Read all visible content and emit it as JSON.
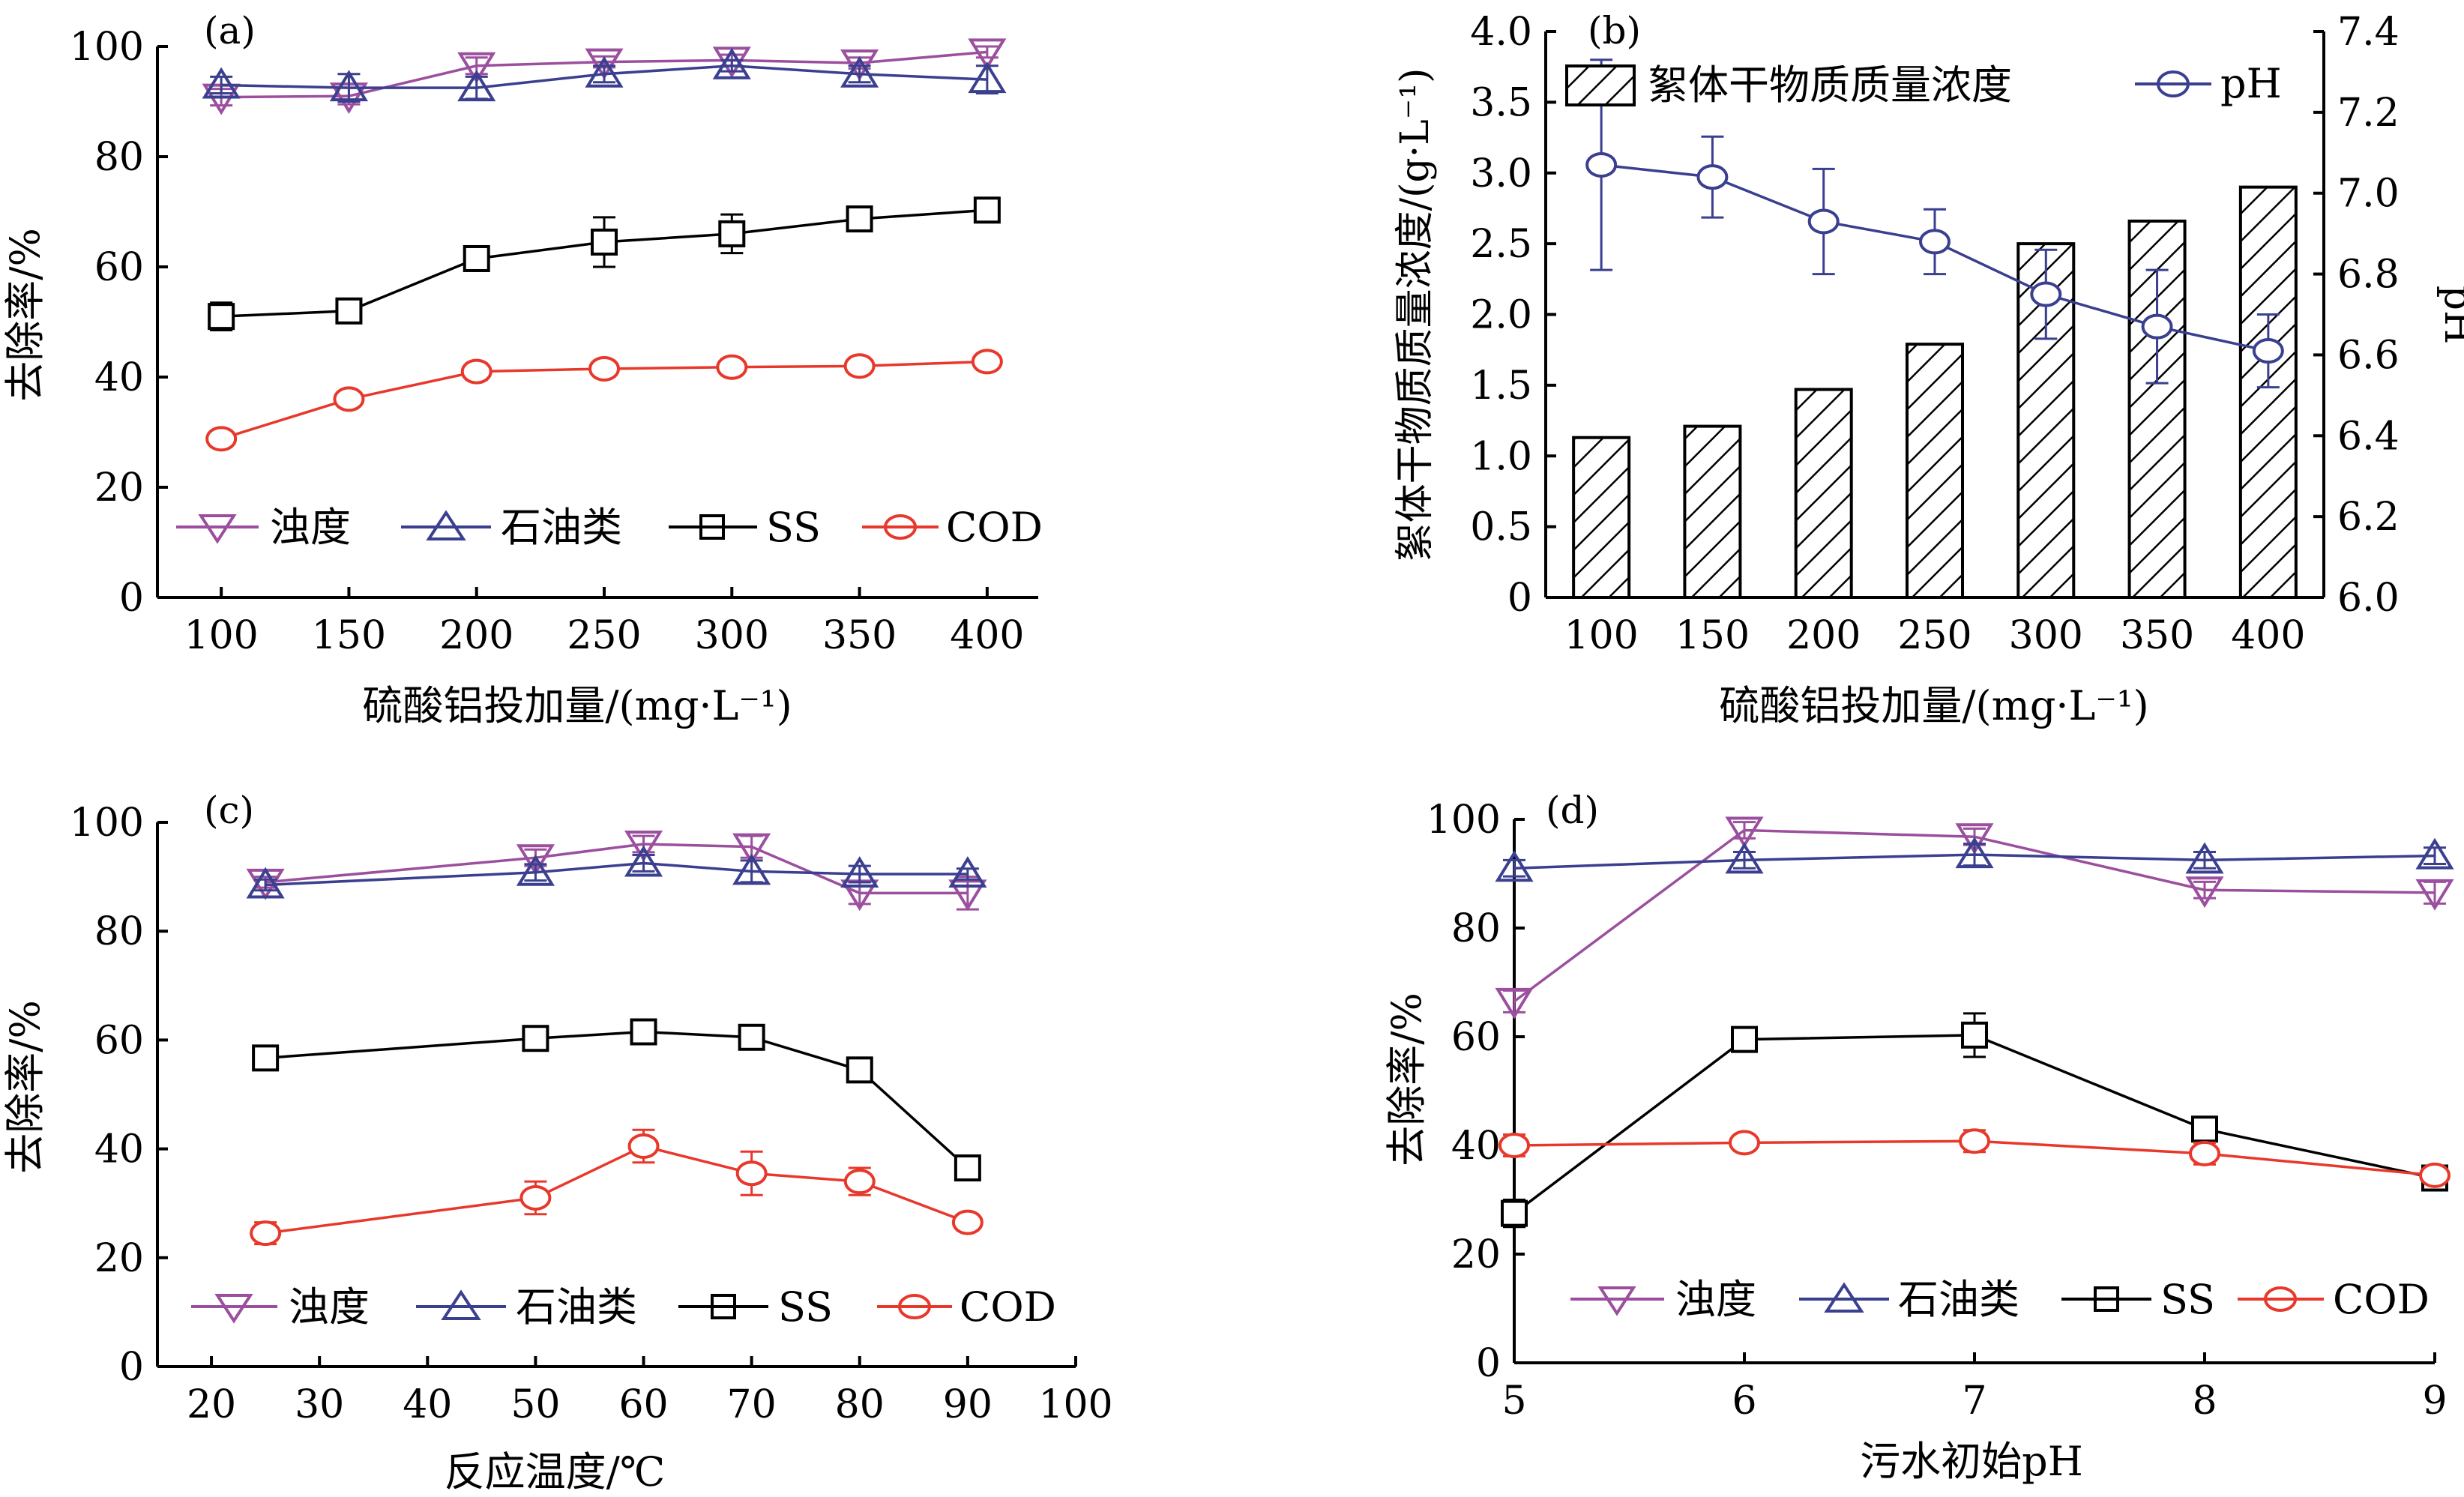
{
  "chart_data": [
    {
      "type": "line",
      "panel_label": "(a)",
      "xlabel": "硫酸铝投加量/(mg·L⁻¹)",
      "ylabel": "去除率/%",
      "x": [
        100,
        150,
        200,
        250,
        300,
        350,
        400
      ],
      "xticks": [
        "100",
        "150",
        "200",
        "250",
        "300",
        "350",
        "400"
      ],
      "xlim": [
        75,
        420
      ],
      "ylim": [
        0,
        100
      ],
      "yticks": [
        "0",
        "20",
        "40",
        "60",
        "80",
        "100"
      ],
      "legend_position": "bottom",
      "series": [
        {
          "name": "浊度",
          "marker": "triangle-down",
          "color": "#9b4f9e",
          "values": [
            90.8,
            91.0,
            96.5,
            97.2,
            97.5,
            97.0,
            99.0
          ],
          "errors": [
            1.5,
            1.5,
            1.5,
            1.0,
            1.0,
            1.0,
            1.0
          ]
        },
        {
          "name": "石油类",
          "marker": "triangle-up",
          "color": "#3a3f8f",
          "values": [
            93.0,
            92.5,
            92.5,
            95.0,
            96.5,
            95.0,
            94.0
          ],
          "errors": [
            1.5,
            2.5,
            2.0,
            1.5,
            1.0,
            1.5,
            2.5
          ]
        },
        {
          "name": "SS",
          "marker": "square",
          "color": "#000000",
          "values": [
            51.0,
            52.0,
            61.5,
            64.5,
            66.0,
            68.7,
            70.3
          ],
          "errors": [
            2.5,
            2.0,
            1.5,
            4.5,
            3.5,
            1.5,
            2.0
          ]
        },
        {
          "name": "COD",
          "marker": "circle",
          "color": "#e8382b",
          "values": [
            28.8,
            36.0,
            41.0,
            41.5,
            41.8,
            42.0,
            42.8
          ],
          "errors": [
            1.5,
            1.0,
            1.5,
            1.5,
            1.5,
            1.5,
            1.5
          ]
        }
      ]
    },
    {
      "type": "bar+line",
      "panel_label": "(b)",
      "xlabel": "硫酸铝投加量/(mg·L⁻¹)",
      "ylabel": "絮体干物质质量浓度/(g·L⁻¹)",
      "y2label": "pH",
      "categories": [
        "100",
        "150",
        "200",
        "250",
        "300",
        "350",
        "400"
      ],
      "ylim": [
        0,
        4.0
      ],
      "yticks": [
        "0",
        "0.5",
        "1.0",
        "1.5",
        "2.0",
        "2.5",
        "3.0",
        "3.5",
        "4.0"
      ],
      "y2lim": [
        6.0,
        7.4
      ],
      "y2ticks": [
        "6.0",
        "6.2",
        "6.4",
        "6.6",
        "6.8",
        "7.0",
        "7.2",
        "7.4"
      ],
      "legend_position": "top",
      "bar_series": {
        "name": "絮体干物质质量浓度",
        "values": [
          1.13,
          1.21,
          1.47,
          1.79,
          2.5,
          2.66,
          2.9
        ]
      },
      "line_series": {
        "name": "pH",
        "marker": "circle",
        "color": "#3a3f8f",
        "values": [
          7.07,
          7.04,
          6.93,
          6.88,
          6.75,
          6.67,
          6.61
        ],
        "errors": [
          0.26,
          0.1,
          0.13,
          0.08,
          0.11,
          0.14,
          0.09
        ]
      }
    },
    {
      "type": "line",
      "panel_label": "(c)",
      "xlabel": "反应温度/℃",
      "ylabel": "去除率/%",
      "x": [
        25,
        50,
        60,
        70,
        80,
        90
      ],
      "xticks": [
        "20",
        "30",
        "40",
        "50",
        "60",
        "70",
        "80",
        "90",
        "100"
      ],
      "xlim": [
        15,
        100
      ],
      "ylim": [
        0,
        100
      ],
      "yticks": [
        "0",
        "20",
        "40",
        "60",
        "80",
        "100"
      ],
      "legend_position": "bottom",
      "series": [
        {
          "name": "浊度",
          "marker": "triangle-down",
          "color": "#9b4f9e",
          "values": [
            89.0,
            93.5,
            96.0,
            95.5,
            87.0,
            87.0
          ],
          "errors": [
            1.0,
            1.5,
            1.5,
            2.0,
            2.0,
            3.0
          ]
        },
        {
          "name": "石油类",
          "marker": "triangle-up",
          "color": "#3a3f8f",
          "values": [
            88.5,
            90.8,
            92.5,
            91.0,
            90.5,
            90.5
          ],
          "errors": [
            1.0,
            1.5,
            1.5,
            2.0,
            1.5,
            1.0
          ]
        },
        {
          "name": "SS",
          "marker": "square",
          "color": "#000000",
          "values": [
            56.7,
            60.3,
            61.5,
            60.5,
            54.5,
            36.5
          ],
          "errors": [
            2.0,
            1.5,
            1.5,
            2.0,
            1.5,
            2.0
          ]
        },
        {
          "name": "COD",
          "marker": "circle",
          "color": "#e8382b",
          "values": [
            24.5,
            31.0,
            40.5,
            35.5,
            34.0,
            26.5
          ],
          "errors": [
            2.0,
            3.0,
            3.0,
            4.0,
            2.5,
            1.5
          ]
        }
      ]
    },
    {
      "type": "line",
      "panel_label": "(d)",
      "xlabel": "污水初始pH",
      "ylabel": "去除率/%",
      "x": [
        5,
        6,
        7,
        8,
        9
      ],
      "xticks": [
        "5",
        "6",
        "7",
        "8",
        "9"
      ],
      "xlim": [
        5,
        9
      ],
      "ylim": [
        0,
        100
      ],
      "yticks": [
        "0",
        "20",
        "40",
        "60",
        "80",
        "100"
      ],
      "legend_position": "bottom",
      "series": [
        {
          "name": "浊度",
          "marker": "triangle-down",
          "color": "#9b4f9e",
          "values": [
            66.5,
            98.0,
            96.8,
            87.0,
            86.5
          ],
          "errors": [
            2.0,
            1.5,
            1.5,
            1.5,
            2.0
          ]
        },
        {
          "name": "石油类",
          "marker": "triangle-up",
          "color": "#3a3f8f",
          "values": [
            91.0,
            92.5,
            93.5,
            92.5,
            93.3
          ],
          "errors": [
            1.5,
            1.5,
            2.0,
            1.5,
            1.5
          ]
        },
        {
          "name": "SS",
          "marker": "square",
          "color": "#000000",
          "values": [
            27.5,
            59.5,
            60.3,
            43.0,
            34.0
          ],
          "errors": [
            2.5,
            2.0,
            4.0,
            1.5,
            2.0
          ]
        },
        {
          "name": "COD",
          "marker": "circle",
          "color": "#e8382b",
          "values": [
            40.0,
            40.5,
            40.8,
            38.5,
            34.5
          ],
          "errors": [
            2.0,
            1.5,
            2.0,
            2.0,
            1.5
          ]
        }
      ]
    }
  ]
}
